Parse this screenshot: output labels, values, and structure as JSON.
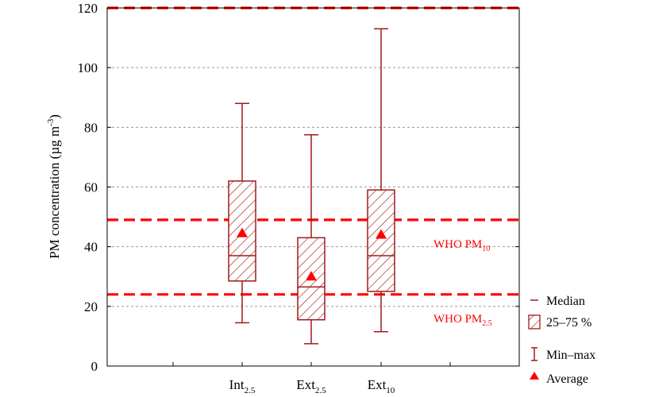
{
  "chart_data": {
    "type": "box",
    "ylabel_main": "PM concentration (µg m",
    "ylabel_sup": "-3",
    "ylabel_close": ")",
    "ylim": [
      0,
      120
    ],
    "yticks": [
      0,
      20,
      40,
      60,
      80,
      100,
      120
    ],
    "grid": "horizontal dashed",
    "categories": [
      {
        "base": "Int",
        "sub": "2.5"
      },
      {
        "base": "Ext",
        "sub": "2.5"
      },
      {
        "base": "Ext",
        "sub": "10"
      }
    ],
    "boxes": [
      {
        "min": 14.5,
        "q1": 28.5,
        "median": 37,
        "q3": 62,
        "max": 88,
        "mean": 44.5
      },
      {
        "min": 7.5,
        "q1": 15.5,
        "median": 26.5,
        "q3": 43,
        "max": 77.5,
        "mean": 30
      },
      {
        "min": 11.5,
        "q1": 25,
        "median": 37,
        "q3": 59,
        "max": 113,
        "mean": 44
      }
    ],
    "reference_lines": [
      {
        "value": 120,
        "label_base": "",
        "label_sub": ""
      },
      {
        "value": 49,
        "label_base": "WHO PM",
        "label_sub": "10"
      },
      {
        "value": 24,
        "label_base": "WHO PM",
        "label_sub": "2.5"
      }
    ],
    "legend": {
      "position": "bottom-right",
      "items": [
        {
          "symbol": "median-line",
          "label": "Median"
        },
        {
          "symbol": "hatched-box",
          "label": "25–75 %"
        },
        {
          "symbol": "whisker",
          "label": "Min–max"
        },
        {
          "symbol": "triangle",
          "label": "Average"
        }
      ]
    },
    "colors": {
      "box": "#a01a1a",
      "reference": "#ff0000",
      "mean": "#ff0000",
      "grid": "#999999",
      "axis": "#000000"
    }
  }
}
